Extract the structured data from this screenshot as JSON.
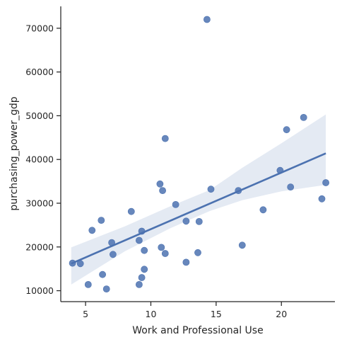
{
  "chart_data": {
    "type": "scatter",
    "xlabel": "Work and Professional Use",
    "ylabel": "purchasing_power_gdp",
    "xlim": [
      3.1,
      24.1
    ],
    "ylim": [
      7500,
      75000
    ],
    "xticks": [
      5,
      10,
      15,
      20
    ],
    "yticks": [
      10000,
      20000,
      30000,
      40000,
      50000,
      60000,
      70000
    ],
    "grid": false,
    "legend": "none",
    "color": "#4c72b0",
    "points": [
      {
        "x": 4.0,
        "y": 16300
      },
      {
        "x": 4.6,
        "y": 16200
      },
      {
        "x": 5.2,
        "y": 11400
      },
      {
        "x": 5.5,
        "y": 23800
      },
      {
        "x": 6.2,
        "y": 26100
      },
      {
        "x": 6.3,
        "y": 13700
      },
      {
        "x": 6.6,
        "y": 10400
      },
      {
        "x": 7.0,
        "y": 21000
      },
      {
        "x": 7.1,
        "y": 18300
      },
      {
        "x": 8.5,
        "y": 28100
      },
      {
        "x": 9.1,
        "y": 21500
      },
      {
        "x": 9.1,
        "y": 11400
      },
      {
        "x": 9.3,
        "y": 13000
      },
      {
        "x": 9.3,
        "y": 23600
      },
      {
        "x": 9.5,
        "y": 19200
      },
      {
        "x": 9.5,
        "y": 14900
      },
      {
        "x": 10.7,
        "y": 34400
      },
      {
        "x": 10.8,
        "y": 19900
      },
      {
        "x": 10.9,
        "y": 32900
      },
      {
        "x": 11.1,
        "y": 44800
      },
      {
        "x": 11.1,
        "y": 18500
      },
      {
        "x": 11.9,
        "y": 29700
      },
      {
        "x": 12.7,
        "y": 25900
      },
      {
        "x": 12.7,
        "y": 16500
      },
      {
        "x": 13.6,
        "y": 18700
      },
      {
        "x": 13.7,
        "y": 25800
      },
      {
        "x": 14.3,
        "y": 72000
      },
      {
        "x": 14.6,
        "y": 33200
      },
      {
        "x": 16.7,
        "y": 32900
      },
      {
        "x": 17.0,
        "y": 20400
      },
      {
        "x": 18.6,
        "y": 28500
      },
      {
        "x": 19.9,
        "y": 37500
      },
      {
        "x": 20.4,
        "y": 46800
      },
      {
        "x": 20.7,
        "y": 33700
      },
      {
        "x": 21.7,
        "y": 49600
      },
      {
        "x": 23.1,
        "y": 31000
      },
      {
        "x": 23.4,
        "y": 34700
      }
    ],
    "regression": {
      "x_start": 3.9,
      "x_end": 23.4,
      "y_start": 16200,
      "y_end": 41400,
      "ci": [
        {
          "x": 3.9,
          "lo": 11400,
          "hi": 19900
        },
        {
          "x": 8.0,
          "lo": 19000,
          "hi": 24700
        },
        {
          "x": 11.5,
          "lo": 24300,
          "hi": 29300
        },
        {
          "x": 14.5,
          "lo": 28200,
          "hi": 33000
        },
        {
          "x": 17.0,
          "lo": 30700,
          "hi": 38100
        },
        {
          "x": 20.0,
          "lo": 32700,
          "hi": 43700
        },
        {
          "x": 23.4,
          "lo": 34200,
          "hi": 50300
        }
      ]
    }
  }
}
